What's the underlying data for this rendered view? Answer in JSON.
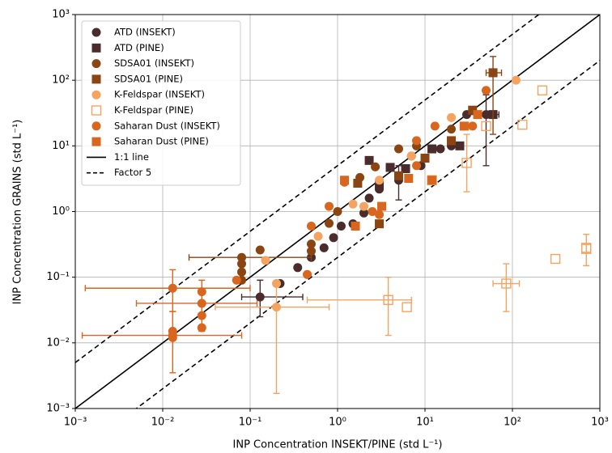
{
  "chart_data": {
    "type": "scatter",
    "x_label": "INP Concentration INSEKT/PINE (std L⁻¹)",
    "y_label": "INP Concentration GRAINS (std L⁻¹)",
    "x_scale": "log",
    "y_scale": "log",
    "grid": true,
    "legend": "upper left",
    "xlim": [
      0.001,
      1000
    ],
    "ylim": [
      0.001,
      1000
    ],
    "xticks": [
      {
        "value": 0.001,
        "label": "10⁻³"
      },
      {
        "value": 0.01,
        "label": "10⁻²"
      },
      {
        "value": 0.1,
        "label": "10⁻¹"
      },
      {
        "value": 1,
        "label": "10⁰"
      },
      {
        "value": 10,
        "label": "10¹"
      },
      {
        "value": 100,
        "label": "10²"
      },
      {
        "value": 1000,
        "label": "10³"
      }
    ],
    "yticks": [
      {
        "value": 0.001,
        "label": "10⁻³"
      },
      {
        "value": 0.01,
        "label": "10⁻²"
      },
      {
        "value": 0.1,
        "label": "10⁻¹"
      },
      {
        "value": 1,
        "label": "10⁰"
      },
      {
        "value": 10,
        "label": "10¹"
      },
      {
        "value": 100,
        "label": "10²"
      },
      {
        "value": 1000,
        "label": "10³"
      }
    ],
    "series": [
      {
        "name": "ATD (INSEKT)",
        "color": "#4b2c2c",
        "marker": "circle",
        "x": [
          0.13,
          0.22,
          0.35,
          0.5,
          0.7,
          0.9,
          1.1,
          1.5,
          2,
          2.3,
          3,
          5,
          7,
          9,
          15,
          20,
          30,
          50
        ],
        "y": [
          0.05,
          0.08,
          0.14,
          0.2,
          0.28,
          0.4,
          0.6,
          0.65,
          0.95,
          1.6,
          2.2,
          3,
          7,
          5,
          9,
          10,
          30,
          30
        ],
        "xerr": [
          [
            0.08,
            0.4
          ],
          null,
          null,
          null,
          null,
          null,
          null,
          null,
          null,
          null,
          null,
          null,
          null,
          null,
          null,
          null,
          null,
          [
            30,
            70
          ]
        ],
        "yerr": [
          [
            0.025,
            0.09
          ],
          null,
          null,
          null,
          null,
          null,
          null,
          null,
          null,
          null,
          null,
          [
            1.5,
            5
          ],
          null,
          null,
          null,
          null,
          null,
          [
            5,
            60
          ]
        ]
      },
      {
        "name": "ATD (PINE)",
        "color": "#4b2c2c",
        "marker": "square",
        "x": [
          2.3,
          4,
          6,
          12,
          25,
          60,
          3
        ],
        "y": [
          6,
          4.7,
          4.5,
          9,
          10,
          30,
          2.5
        ]
      },
      {
        "name": "SDSA01 (INSEKT)",
        "color": "#8b4513",
        "marker": "circle",
        "x": [
          0.08,
          0.08,
          0.08,
          0.08,
          0.13,
          0.5,
          0.5,
          0.8,
          1,
          1.8,
          2.7,
          5,
          8,
          20,
          60
        ],
        "y": [
          0.09,
          0.12,
          0.16,
          0.2,
          0.26,
          0.32,
          0.25,
          0.66,
          1,
          3.3,
          4.8,
          9,
          10,
          18,
          130
        ],
        "xerr": [
          null,
          null,
          null,
          [
            0.02,
            0.5
          ],
          null,
          null,
          null,
          null,
          null,
          null,
          null,
          null,
          null,
          null,
          [
            50,
            75
          ]
        ],
        "yerr": [
          null,
          null,
          null,
          null,
          null,
          null,
          null,
          null,
          null,
          null,
          null,
          null,
          null,
          null,
          [
            15,
            230
          ]
        ]
      },
      {
        "name": "SDSA01 (PINE)",
        "color": "#8b4513",
        "marker": "square",
        "x": [
          1.7,
          3,
          5,
          10,
          20,
          35,
          60
        ],
        "y": [
          2.7,
          0.65,
          3.5,
          6.5,
          12,
          35,
          130
        ]
      },
      {
        "name": "K-Feldspar (INSEKT)",
        "color": "#f4a460",
        "marker": "circle",
        "x": [
          0.15,
          0.2,
          0.2,
          0.6,
          1.5,
          2,
          3,
          7,
          20,
          110,
          30
        ],
        "y": [
          0.18,
          0.035,
          0.08,
          0.42,
          1.3,
          1.2,
          3,
          7,
          27,
          100,
          20
        ],
        "xerr": [
          null,
          [
            0.04,
            0.8
          ],
          null,
          null,
          null,
          null,
          null,
          null,
          null,
          null,
          null
        ],
        "yerr": [
          null,
          [
            0.0017,
            0.08
          ],
          null,
          null,
          null,
          null,
          null,
          null,
          null,
          null,
          null
        ]
      },
      {
        "name": "K-Feldspar (PINE)",
        "color": "#f4a460",
        "marker": "square",
        "hollow": true,
        "x": [
          3.8,
          6.2,
          85,
          310,
          700,
          700,
          220,
          130,
          50,
          30,
          12
        ],
        "y": [
          0.045,
          0.035,
          0.08,
          0.19,
          0.27,
          0.28,
          70,
          21,
          20,
          5.5,
          3
        ],
        "xerr": [
          [
            0.45,
            7
          ],
          null,
          [
            60,
            120
          ],
          null,
          null,
          null,
          null,
          null,
          null,
          null,
          null
        ],
        "yerr": [
          [
            0.013,
            0.1
          ],
          null,
          [
            0.03,
            0.16
          ],
          null,
          [
            0.15,
            0.45
          ],
          null,
          null,
          null,
          null,
          [
            2,
            15
          ],
          null
        ]
      },
      {
        "name": "Saharan Dust (INSEKT)",
        "color": "#d9661f",
        "marker": "circle",
        "x": [
          0.013,
          0.013,
          0.013,
          0.013,
          0.028,
          0.028,
          0.028,
          0.028,
          0.07,
          0.45,
          0.5,
          0.8,
          1.2,
          2.5,
          3,
          8,
          13,
          35,
          50,
          8
        ],
        "y": [
          0.068,
          0.015,
          0.012,
          0.013,
          0.06,
          0.04,
          0.026,
          0.017,
          0.09,
          0.11,
          0.6,
          1.2,
          2.8,
          1,
          0.9,
          5,
          20,
          20,
          70,
          12
        ],
        "xerr": [
          [
            0.0013,
            0.1
          ],
          null,
          null,
          [
            0.0012,
            0.08
          ],
          null,
          [
            0.005,
            0.12
          ],
          null,
          null,
          null,
          null,
          null,
          null,
          null,
          null,
          null,
          null,
          null,
          null,
          null,
          null
        ],
        "yerr": [
          [
            0.03,
            0.13
          ],
          null,
          null,
          [
            0.0035,
            0.03
          ],
          null,
          [
            0.015,
            0.09
          ],
          null,
          null,
          null,
          null,
          null,
          null,
          null,
          null,
          null,
          null,
          null,
          null,
          null,
          null
        ]
      },
      {
        "name": "Saharan Dust (PINE)",
        "color": "#d9661f",
        "marker": "square",
        "x": [
          1.6,
          3.2,
          6.5,
          12,
          28,
          40,
          1.2
        ],
        "y": [
          0.6,
          1.2,
          3.2,
          3,
          20,
          30,
          3
        ]
      }
    ],
    "lines": [
      {
        "name": "1:1 line",
        "style": "solid",
        "factor": 1
      },
      {
        "name": "Factor 5",
        "style": "dashed",
        "factor": 5
      }
    ]
  }
}
